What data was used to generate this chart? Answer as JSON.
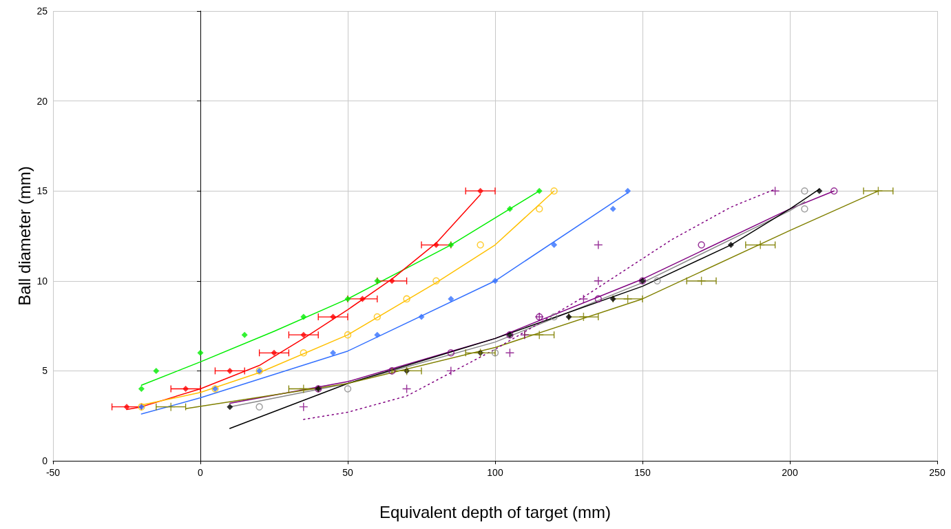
{
  "chart_data": {
    "type": "scatter",
    "xlabel": "Equivalent depth of target (mm)",
    "ylabel": "Ball diameter (mm)",
    "xlim": [
      -50,
      250
    ],
    "xticks": [
      -50,
      0,
      50,
      100,
      150,
      200,
      250
    ],
    "ylim": [
      0,
      25
    ],
    "yticks": [
      0,
      5,
      10,
      15,
      20,
      25
    ],
    "grid": true,
    "series": [
      {
        "type": "scatter",
        "color": "#00ee00",
        "marker": "diamond",
        "x": [
          -20,
          -15,
          0,
          15,
          35,
          50,
          60,
          85,
          105,
          115
        ],
        "values": [
          4,
          5,
          6,
          7,
          8,
          9,
          10,
          12,
          14,
          15
        ]
      },
      {
        "type": "scatter",
        "color": "#ff0000",
        "marker": "diamond",
        "x": [
          -25,
          -5,
          10,
          25,
          35,
          45,
          55,
          65,
          80,
          95
        ],
        "values": [
          3,
          4,
          5,
          6,
          7,
          8,
          9,
          10,
          12,
          15
        ],
        "xerrors": [
          5,
          5,
          5,
          5,
          5,
          5,
          5,
          5,
          5,
          5
        ]
      },
      {
        "type": "scatter",
        "color": "#3370ff",
        "marker": "diamond",
        "x": [
          -20,
          5,
          20,
          45,
          60,
          75,
          85,
          100,
          120,
          140,
          145
        ],
        "values": [
          3,
          4,
          5,
          6,
          7,
          8,
          9,
          10,
          12,
          14,
          15
        ]
      },
      {
        "type": "scatter",
        "color": "#ffc000",
        "marker": "circle",
        "x": [
          -20,
          5,
          20,
          35,
          50,
          60,
          70,
          80,
          95,
          115,
          120
        ],
        "values": [
          3,
          4,
          5,
          6,
          7,
          8,
          9,
          10,
          12,
          14,
          15
        ]
      },
      {
        "type": "scatter",
        "color": "#888888",
        "marker": "circle",
        "x": [
          20,
          50,
          100,
          120,
          155,
          205,
          205
        ],
        "values": [
          3,
          4,
          6,
          8,
          10,
          14,
          15
        ]
      },
      {
        "type": "scatter",
        "color": "#800080",
        "marker": "circle",
        "x": [
          40,
          65,
          85,
          105,
          115,
          135,
          150,
          170,
          215
        ],
        "values": [
          4,
          5,
          6,
          7,
          8,
          9,
          10,
          12,
          15
        ]
      },
      {
        "type": "scatter",
        "color": "#000000",
        "marker": "diamond",
        "x": [
          10,
          40,
          70,
          95,
          105,
          125,
          140,
          150,
          180,
          210
        ],
        "values": [
          3,
          4,
          5,
          6,
          7,
          8,
          9,
          10,
          12,
          15
        ]
      },
      {
        "type": "scatter",
        "color": "#808000",
        "marker": "cross",
        "x": [
          -10,
          35,
          70,
          95,
          115,
          130,
          145,
          170,
          190,
          230
        ],
        "values": [
          3,
          4,
          5,
          6,
          7,
          8,
          9,
          10,
          12,
          15
        ],
        "xerrors": [
          5,
          5,
          5,
          5,
          5,
          5,
          5,
          5,
          5,
          5
        ]
      },
      {
        "type": "scatter",
        "color": "#800080",
        "marker": "cross",
        "x": [
          35,
          70,
          85,
          105,
          110,
          115,
          130,
          135,
          135,
          195
        ],
        "values": [
          3,
          4,
          5,
          6,
          7,
          8,
          9,
          10,
          12,
          15
        ]
      },
      {
        "type": "line",
        "color": "#00ee00",
        "marker": "none",
        "line_style": "solid",
        "x": [
          -20,
          0,
          25,
          50,
          85,
          115
        ],
        "values": [
          4.2,
          5.5,
          7.2,
          9.0,
          12,
          15
        ]
      },
      {
        "type": "line",
        "color": "#ff0000",
        "marker": "none",
        "line_style": "solid",
        "x": [
          -25,
          -20,
          0,
          20,
          35,
          50,
          65,
          80,
          95
        ],
        "values": [
          2.85,
          3.0,
          4.0,
          5.3,
          6.8,
          8.4,
          10.1,
          12.1,
          14.8
        ]
      },
      {
        "type": "line",
        "color": "#ffc000",
        "marker": "none",
        "line_style": "solid",
        "x": [
          -20,
          0,
          20,
          50,
          80,
          100,
          120
        ],
        "values": [
          3.1,
          3.8,
          4.9,
          7.0,
          9.9,
          12,
          15
        ]
      },
      {
        "type": "line",
        "color": "#3370ff",
        "marker": "none",
        "line_style": "solid",
        "x": [
          -20,
          0,
          50,
          100,
          145
        ],
        "values": [
          2.6,
          3.5,
          6.1,
          10,
          14.9
        ]
      },
      {
        "type": "line",
        "color": "#800080",
        "marker": "none",
        "line_style": "solid",
        "x": [
          10,
          50,
          100,
          150,
          200,
          215
        ],
        "values": [
          3.2,
          4.4,
          6.8,
          10.1,
          14,
          15
        ]
      },
      {
        "type": "line",
        "color": "#888888",
        "marker": "none",
        "line_style": "solid",
        "x": [
          10,
          50,
          100,
          150,
          200,
          205
        ],
        "values": [
          3.0,
          4.3,
          6.6,
          9.9,
          13.9,
          14.4
        ]
      },
      {
        "type": "line",
        "color": "#000000",
        "marker": "none",
        "line_style": "solid",
        "x": [
          10,
          50,
          100,
          150,
          180,
          200,
          210
        ],
        "values": [
          1.8,
          4.3,
          6.8,
          9.7,
          12,
          14,
          15.1
        ]
      },
      {
        "type": "line",
        "color": "#808000",
        "marker": "none",
        "line_style": "solid",
        "x": [
          -5,
          50,
          100,
          150,
          200,
          230
        ],
        "values": [
          2.9,
          4.3,
          6.3,
          9.0,
          12.8,
          15
        ]
      },
      {
        "type": "line",
        "color": "#800080",
        "marker": "none",
        "line_style": "dotted",
        "x": [
          35,
          50,
          70,
          100,
          130,
          160,
          180,
          195
        ],
        "values": [
          2.3,
          2.7,
          3.6,
          6.2,
          9.1,
          12.3,
          14.1,
          15.1
        ]
      }
    ]
  }
}
